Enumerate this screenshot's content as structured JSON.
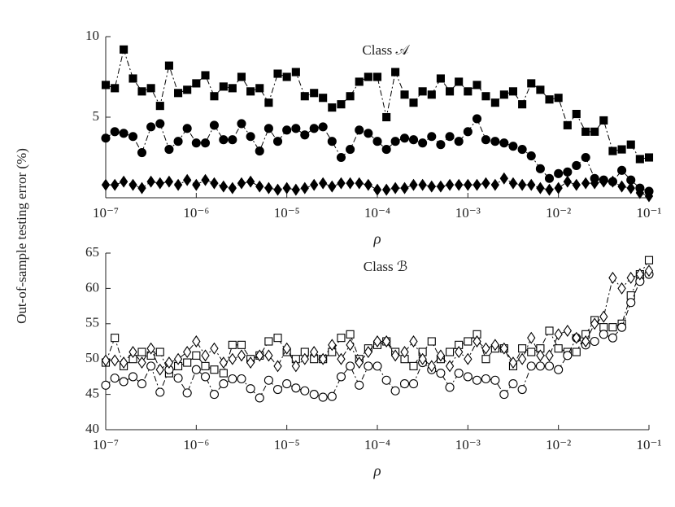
{
  "chart_data": [
    {
      "type": "line",
      "title": "Class 𝒜",
      "xlabel": "ρ",
      "ylabel": "Out-of-sample testing error (%)",
      "xscale": "log",
      "xlim": [
        1e-07,
        0.1
      ],
      "xticks": [
        {
          "value": 1e-07,
          "label": "10⁻⁷"
        },
        {
          "value": 1e-06,
          "label": "10⁻⁶"
        },
        {
          "value": 1e-05,
          "label": "10⁻⁵"
        },
        {
          "value": 0.0001,
          "label": "10⁻⁴"
        },
        {
          "value": 0.001,
          "label": "10⁻³"
        },
        {
          "value": 0.01,
          "label": "10⁻²"
        },
        {
          "value": 0.1,
          "label": "10⁻¹"
        }
      ],
      "ylim": [
        0,
        10
      ],
      "yticks": [
        5,
        10
      ],
      "x": [
        1e-07,
        1.26e-07,
        1.58e-07,
        2e-07,
        2.51e-07,
        3.16e-07,
        3.98e-07,
        5.01e-07,
        6.31e-07,
        7.94e-07,
        1e-06,
        1.26e-06,
        1.58e-06,
        2e-06,
        2.51e-06,
        3.16e-06,
        3.98e-06,
        5.01e-06,
        6.31e-06,
        7.94e-06,
        1e-05,
        1.26e-05,
        1.58e-05,
        2e-05,
        2.51e-05,
        3.16e-05,
        3.98e-05,
        5.01e-05,
        6.31e-05,
        7.94e-05,
        0.0001,
        0.000126,
        0.000158,
        0.0002,
        0.000251,
        0.000316,
        0.000398,
        0.000501,
        0.000631,
        0.000794,
        0.001,
        0.00126,
        0.00158,
        0.002,
        0.00251,
        0.00316,
        0.00398,
        0.00501,
        0.00631,
        0.00794,
        0.01,
        0.0126,
        0.0158,
        0.02,
        0.0251,
        0.0316,
        0.0398,
        0.0501,
        0.0631,
        0.0794,
        0.1
      ],
      "series": [
        {
          "marker": "square",
          "filled": true,
          "color": "#000000",
          "values": [
            7.0,
            6.8,
            9.2,
            7.4,
            6.6,
            6.8,
            5.7,
            8.2,
            6.5,
            6.7,
            7.1,
            7.6,
            6.3,
            6.9,
            6.8,
            7.5,
            6.6,
            6.8,
            5.9,
            7.7,
            7.5,
            7.8,
            6.3,
            6.5,
            6.2,
            5.6,
            5.8,
            6.3,
            7.2,
            7.5,
            7.5,
            5.0,
            7.8,
            6.4,
            5.9,
            6.6,
            6.4,
            7.4,
            6.6,
            7.2,
            6.6,
            7.0,
            6.3,
            5.9,
            6.4,
            6.6,
            5.8,
            7.1,
            6.7,
            6.1,
            6.2,
            4.5,
            5.2,
            4.1,
            4.1,
            4.8,
            2.9,
            3.0,
            3.3,
            2.4,
            2.5
          ]
        },
        {
          "marker": "circle",
          "filled": true,
          "color": "#000000",
          "values": [
            3.7,
            4.1,
            4.0,
            3.8,
            2.8,
            4.4,
            4.6,
            3.0,
            3.5,
            4.3,
            3.4,
            3.4,
            4.5,
            3.6,
            3.6,
            4.6,
            3.8,
            2.9,
            4.3,
            3.5,
            4.2,
            4.3,
            3.9,
            4.3,
            4.4,
            3.5,
            2.5,
            3.0,
            4.2,
            4.0,
            3.5,
            3.0,
            3.5,
            3.7,
            3.6,
            3.4,
            3.8,
            3.3,
            3.8,
            3.5,
            4.1,
            4.9,
            3.6,
            3.5,
            3.4,
            3.2,
            3.0,
            2.6,
            1.8,
            1.2,
            1.5,
            1.6,
            2.0,
            2.5,
            1.2,
            1.1,
            1.0,
            1.7,
            1.1,
            0.6,
            0.4
          ]
        },
        {
          "marker": "diamond",
          "filled": true,
          "color": "#000000",
          "values": [
            0.8,
            0.8,
            1.0,
            0.8,
            0.6,
            1.0,
            0.9,
            1.0,
            0.8,
            1.1,
            0.8,
            1.1,
            0.9,
            0.7,
            0.6,
            0.9,
            1.0,
            0.7,
            0.6,
            0.5,
            0.6,
            0.5,
            0.6,
            0.8,
            0.9,
            0.7,
            0.9,
            0.9,
            0.9,
            0.8,
            0.5,
            0.5,
            0.6,
            0.6,
            0.8,
            0.8,
            0.7,
            0.7,
            0.8,
            0.8,
            0.8,
            0.8,
            0.9,
            0.8,
            1.2,
            0.9,
            0.8,
            0.8,
            0.6,
            0.5,
            0.6,
            1.0,
            0.8,
            0.9,
            0.9,
            1.0,
            1.0,
            0.7,
            0.6,
            0.3,
            0.1
          ]
        }
      ]
    },
    {
      "type": "line",
      "title": "Class ℬ",
      "xlabel": "ρ",
      "xscale": "log",
      "xlim": [
        1e-07,
        0.1
      ],
      "xticks": [
        {
          "value": 1e-07,
          "label": "10⁻⁷"
        },
        {
          "value": 1e-06,
          "label": "10⁻⁶"
        },
        {
          "value": 1e-05,
          "label": "10⁻⁵"
        },
        {
          "value": 0.0001,
          "label": "10⁻⁴"
        },
        {
          "value": 0.001,
          "label": "10⁻³"
        },
        {
          "value": 0.01,
          "label": "10⁻²"
        },
        {
          "value": 0.1,
          "label": "10⁻¹"
        }
      ],
      "ylim": [
        40,
        65
      ],
      "yticks": [
        40,
        45,
        50,
        55,
        60,
        65
      ],
      "x": [
        1e-07,
        1.26e-07,
        1.58e-07,
        2e-07,
        2.51e-07,
        3.16e-07,
        3.98e-07,
        5.01e-07,
        6.31e-07,
        7.94e-07,
        1e-06,
        1.26e-06,
        1.58e-06,
        2e-06,
        2.51e-06,
        3.16e-06,
        3.98e-06,
        5.01e-06,
        6.31e-06,
        7.94e-06,
        1e-05,
        1.26e-05,
        1.58e-05,
        2e-05,
        2.51e-05,
        3.16e-05,
        3.98e-05,
        5.01e-05,
        6.31e-05,
        7.94e-05,
        0.0001,
        0.000126,
        0.000158,
        0.0002,
        0.000251,
        0.000316,
        0.000398,
        0.000501,
        0.000631,
        0.000794,
        0.001,
        0.00126,
        0.00158,
        0.002,
        0.00251,
        0.00316,
        0.00398,
        0.00501,
        0.00631,
        0.00794,
        0.01,
        0.0126,
        0.0158,
        0.02,
        0.0251,
        0.0316,
        0.0398,
        0.0501,
        0.0631,
        0.0794,
        0.1
      ],
      "series": [
        {
          "marker": "square",
          "filled": false,
          "color": "#000000",
          "values": [
            49.5,
            53,
            49,
            50,
            51,
            50.5,
            51,
            48,
            49,
            49.5,
            50.5,
            49,
            48.5,
            48,
            52,
            52,
            50,
            50.5,
            52.5,
            53,
            51,
            50,
            51,
            50,
            50,
            51,
            53,
            53.5,
            50,
            51.5,
            52,
            52.5,
            51,
            50,
            49,
            51,
            52.5,
            50,
            51,
            52,
            52.5,
            53.5,
            50,
            51.5,
            51.5,
            49,
            51.5,
            51,
            51.5,
            54,
            51.5,
            51,
            51,
            53.5,
            55.5,
            54.5,
            54.5,
            55,
            59,
            62,
            64
          ]
        },
        {
          "marker": "circle",
          "filled": false,
          "color": "#000000",
          "values": [
            46.3,
            47.3,
            46.8,
            47.5,
            46.5,
            49,
            45.3,
            48.5,
            47.3,
            45.2,
            48.5,
            47.5,
            45,
            46.5,
            47.2,
            47.2,
            45.8,
            44.5,
            47,
            45.7,
            46.5,
            45.9,
            45.5,
            45,
            44.6,
            44.7,
            47.5,
            49,
            46.3,
            49,
            49,
            47,
            45.5,
            46.5,
            46.5,
            49.5,
            48.5,
            48,
            46,
            48,
            47.5,
            47,
            47.2,
            47,
            45,
            46.5,
            45.7,
            49,
            49,
            49,
            48.5,
            50.5,
            53,
            52,
            52.5,
            53.5,
            53,
            54.5,
            58,
            61,
            62
          ]
        },
        {
          "marker": "diamond",
          "filled": false,
          "color": "#000000",
          "values": [
            49.8,
            49.8,
            49.5,
            51,
            49.5,
            51.5,
            48.5,
            49.5,
            50,
            51,
            52.5,
            50.5,
            51.5,
            49.5,
            50,
            50.5,
            49.5,
            50.5,
            50.5,
            49,
            51.5,
            49,
            50,
            51,
            50,
            52,
            50,
            52,
            49.5,
            51,
            52.5,
            52.5,
            50.5,
            51,
            52.5,
            50,
            49,
            50.5,
            49,
            51,
            50,
            52.5,
            51.5,
            52,
            51.5,
            49.5,
            50,
            53,
            50.5,
            50.5,
            53.5,
            54,
            53,
            52.5,
            55,
            56,
            61.5,
            60,
            61.5,
            62,
            62.5
          ]
        }
      ]
    }
  ]
}
